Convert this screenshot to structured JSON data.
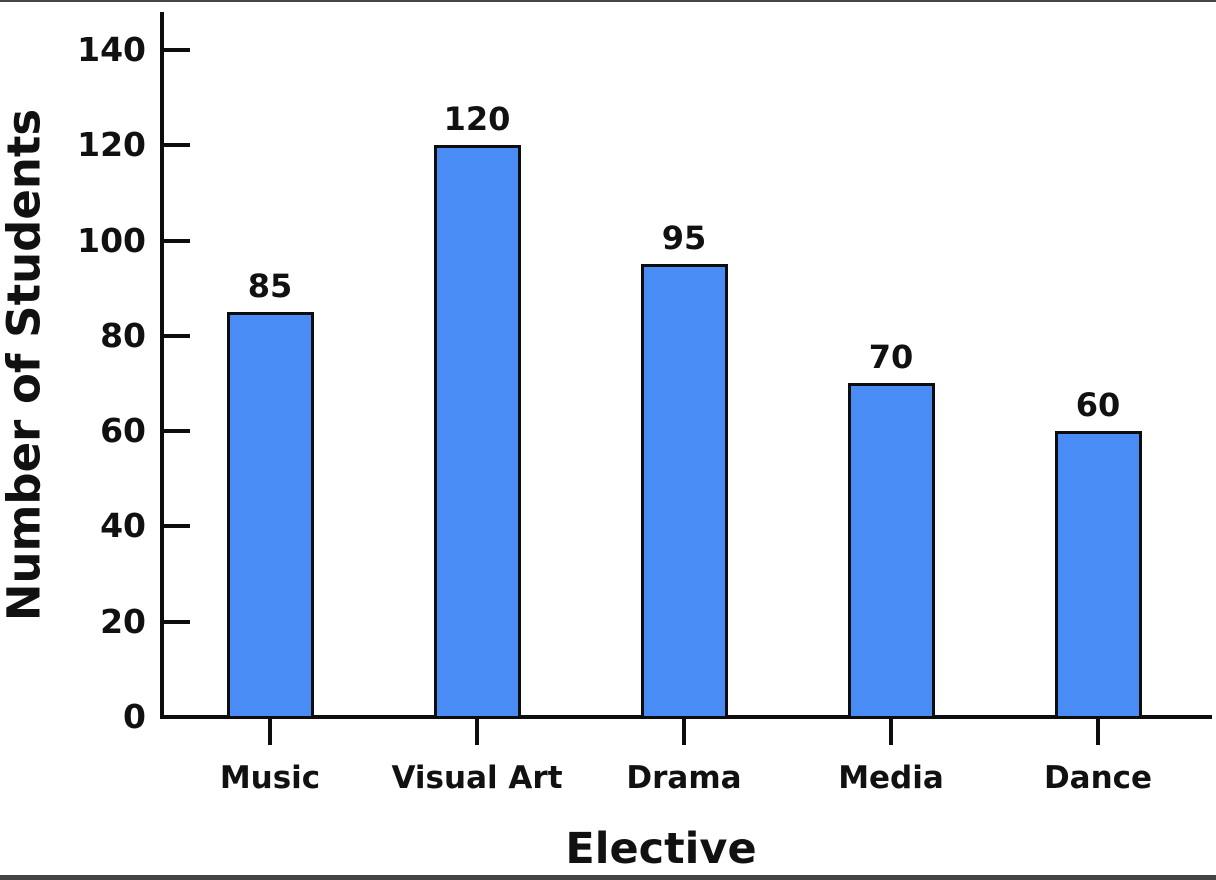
{
  "chart_data": {
    "type": "bar",
    "categories": [
      "Music",
      "Visual Art",
      "Drama",
      "Media",
      "Dance"
    ],
    "values": [
      85,
      120,
      95,
      70,
      60
    ],
    "title": "",
    "xlabel": "Elective",
    "ylabel": "Number of Students",
    "ylim": [
      0,
      148
    ],
    "yticks": [
      0,
      20,
      40,
      60,
      80,
      100,
      120,
      140
    ],
    "value_labels": [
      85,
      120,
      95,
      70,
      60
    ],
    "grid": false,
    "legend": false,
    "bar_color": "#4a8cf5",
    "bar_border_color": "#0d0d0d",
    "axis_color": "#0d0d0d",
    "text_color": "#111111"
  }
}
